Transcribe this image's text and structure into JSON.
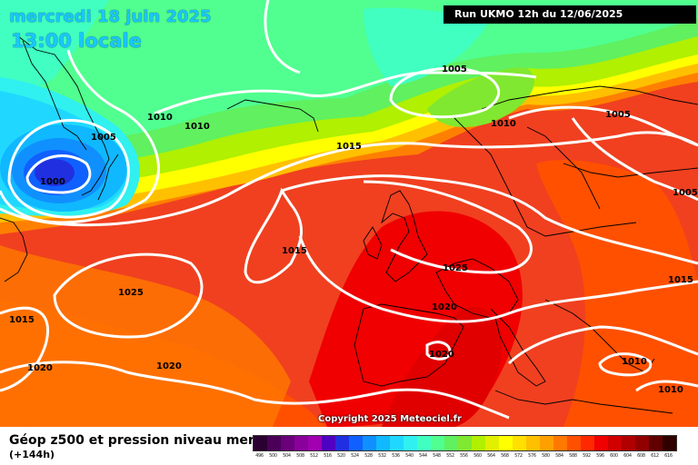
{
  "header": {
    "date": "mercredi 18 juin 2025",
    "time": "13:00 locale",
    "run": "Run UKMO 12h du 12/06/2025"
  },
  "copyright": "Copyright 2025 Meteociel.fr",
  "footer": {
    "product": "Géop z500 et pression niveau mer",
    "lead": "(+144h)"
  },
  "legend": {
    "labels": [
      "496",
      "500",
      "504",
      "508",
      "512",
      "516",
      "520",
      "524",
      "528",
      "532",
      "536",
      "540",
      "544",
      "548",
      "552",
      "556",
      "560",
      "564",
      "568",
      "572",
      "576",
      "580",
      "584",
      "588",
      "592",
      "596",
      "600",
      "604",
      "608",
      "612",
      "616"
    ],
    "colors": [
      "#2a0030",
      "#4a0058",
      "#6a007a",
      "#8a009a",
      "#a000b0",
      "#5000c0",
      "#2030e0",
      "#1060ff",
      "#1090ff",
      "#10b8ff",
      "#20d8ff",
      "#30f0f0",
      "#40ffc0",
      "#50ff90",
      "#60f060",
      "#80e830",
      "#b0f000",
      "#e0f000",
      "#ffff00",
      "#ffe000",
      "#ffc000",
      "#ffa000",
      "#ff7800",
      "#ff5000",
      "#ff2800",
      "#f00000",
      "#d00000",
      "#b00000",
      "#900000",
      "#600000",
      "#300000"
    ]
  },
  "isobars": [
    "1000",
    "1005",
    "1010",
    "1010",
    "1005",
    "1010",
    "1015",
    "1005",
    "1005",
    "1015",
    "1025",
    "1015",
    "1025",
    "1020",
    "1015",
    "1020",
    "1020",
    "1010",
    "1010",
    "1015"
  ]
}
